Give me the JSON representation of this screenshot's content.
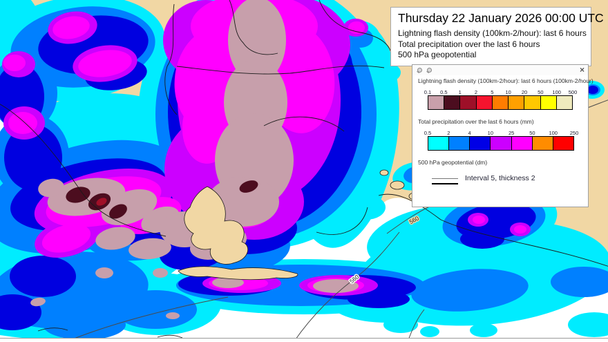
{
  "header_box": {
    "title": "Thursday 22 January 2026 00:00 UTC",
    "subtitle_lines": [
      "Lightning flash density (100km-2/hour): last 6 hours",
      "Total precipitation over the last 6 hours",
      "500 hPa geopotential"
    ]
  },
  "legend_panel": {
    "close_glyph": "×",
    "lightning": {
      "label": "Lightning flash density (100km-2/hour): last 6 hours (100km-2/hour)",
      "ticks": [
        "0.1",
        "0.5",
        "1",
        "2",
        "5",
        "10",
        "20",
        "50",
        "100",
        "500"
      ],
      "colors": [
        "#c9a0ab",
        "#4c0d1f",
        "#9e1028",
        "#f5142e",
        "#ff7d00",
        "#ffa000",
        "#ffc800",
        "#ffff00",
        "#efeabd"
      ]
    },
    "precipitation": {
      "label": "Total precipitation over the last 6 hours (mm)",
      "ticks": [
        "0.5",
        "2",
        "4",
        "10",
        "25",
        "50",
        "100",
        "250"
      ],
      "colors": [
        "#00ffff",
        "#0080ff",
        "#0000e6",
        "#cc00ff",
        "#ff00ff",
        "#ff8c00",
        "#ff0000"
      ]
    },
    "geopotential": {
      "label": "500 hPa geopotential (dm)",
      "note": "Interval 5, thickness 2"
    }
  },
  "map": {
    "land_color": "#f1d7a4",
    "sea_color": "#ffffff",
    "contour_labels": [
      {
        "text": "560"
      },
      {
        "text": "560"
      },
      {
        "text": "560"
      }
    ]
  }
}
